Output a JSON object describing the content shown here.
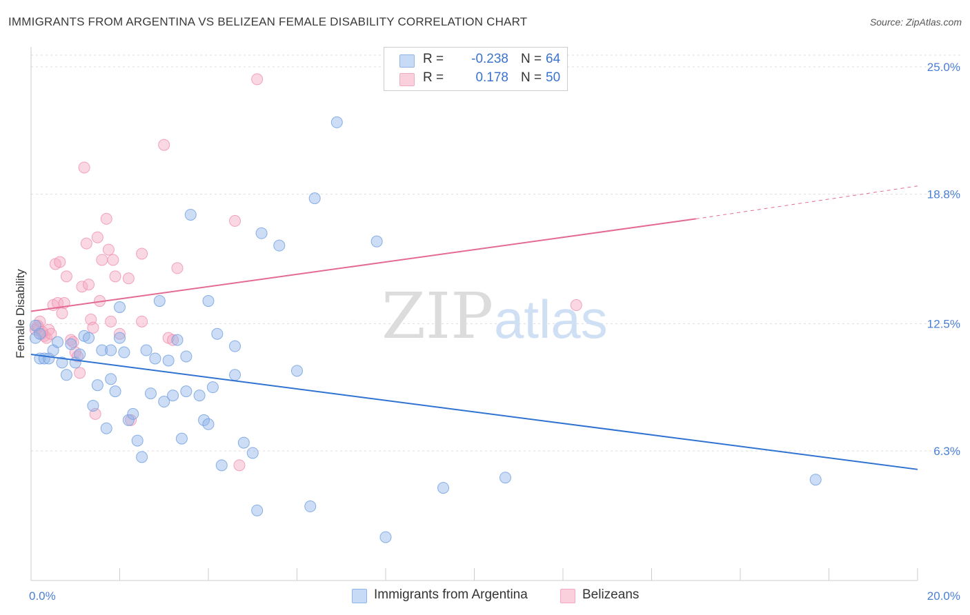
{
  "title": "IMMIGRANTS FROM ARGENTINA VS BELIZEAN FEMALE DISABILITY CORRELATION CHART",
  "source": "Source: ZipAtlas.com",
  "watermark": {
    "zip": "ZIP",
    "atlas": "atlas"
  },
  "legend": {
    "series1": {
      "r_label": "R =",
      "r_value": "-0.238",
      "n_label": "N =",
      "n_value": "64"
    },
    "series2": {
      "r_label": "R =",
      "r_value": "0.178",
      "n_label": "N =",
      "n_value": "50"
    }
  },
  "chart_data": {
    "type": "scatter",
    "title": "IMMIGRANTS FROM ARGENTINA VS BELIZEAN FEMALE DISABILITY CORRELATION CHART",
    "xlabel": "",
    "ylabel": "Female Disability",
    "xlim": [
      0,
      20
    ],
    "ylim": [
      0,
      26
    ],
    "x_tick_labels": [
      "0.0%",
      "20.0%"
    ],
    "y_ticks": [
      6.3,
      12.5,
      18.8,
      25.0
    ],
    "y_tick_labels": [
      "6.3%",
      "12.5%",
      "18.8%",
      "25.0%"
    ],
    "series": [
      {
        "name": "Immigrants from Argentina",
        "color": "#8fb4e8",
        "line_color": "#2f72d1",
        "trend": {
          "x0": 0.0,
          "y0": 11.0,
          "x1": 20.0,
          "y1": 5.4
        },
        "points": [
          [
            0.1,
            12.4
          ],
          [
            0.1,
            11.8
          ],
          [
            0.2,
            12.0
          ],
          [
            0.2,
            10.8
          ],
          [
            0.3,
            10.8
          ],
          [
            0.4,
            10.8
          ],
          [
            0.5,
            11.2
          ],
          [
            0.6,
            11.6
          ],
          [
            0.7,
            10.6
          ],
          [
            0.8,
            10.0
          ],
          [
            0.9,
            11.5
          ],
          [
            1.0,
            10.6
          ],
          [
            1.1,
            11.0
          ],
          [
            1.2,
            11.9
          ],
          [
            1.3,
            11.8
          ],
          [
            1.4,
            8.5
          ],
          [
            1.5,
            9.5
          ],
          [
            1.6,
            11.2
          ],
          [
            1.7,
            7.4
          ],
          [
            1.8,
            9.8
          ],
          [
            1.8,
            11.2
          ],
          [
            1.9,
            9.2
          ],
          [
            2.0,
            11.8
          ],
          [
            2.0,
            13.3
          ],
          [
            2.1,
            11.1
          ],
          [
            2.2,
            7.8
          ],
          [
            2.3,
            8.1
          ],
          [
            2.4,
            6.8
          ],
          [
            2.5,
            6.0
          ],
          [
            2.6,
            11.2
          ],
          [
            2.7,
            9.1
          ],
          [
            2.8,
            10.8
          ],
          [
            2.9,
            13.6
          ],
          [
            3.0,
            8.7
          ],
          [
            3.1,
            10.7
          ],
          [
            3.2,
            9.0
          ],
          [
            3.3,
            11.7
          ],
          [
            3.4,
            6.9
          ],
          [
            3.5,
            9.2
          ],
          [
            3.5,
            10.9
          ],
          [
            3.6,
            17.8
          ],
          [
            3.8,
            9.0
          ],
          [
            3.9,
            7.8
          ],
          [
            4.0,
            7.6
          ],
          [
            4.0,
            13.6
          ],
          [
            4.1,
            9.4
          ],
          [
            4.2,
            12.0
          ],
          [
            4.3,
            5.6
          ],
          [
            4.6,
            10.0
          ],
          [
            4.6,
            11.4
          ],
          [
            4.8,
            6.7
          ],
          [
            5.0,
            6.2
          ],
          [
            5.1,
            3.4
          ],
          [
            5.2,
            16.9
          ],
          [
            5.6,
            16.3
          ],
          [
            6.0,
            10.2
          ],
          [
            6.3,
            3.6
          ],
          [
            6.4,
            18.6
          ],
          [
            6.9,
            22.3
          ],
          [
            7.8,
            16.5
          ],
          [
            8.0,
            2.1
          ],
          [
            9.3,
            4.5
          ],
          [
            10.7,
            5.0
          ],
          [
            17.7,
            4.9
          ]
        ]
      },
      {
        "name": "Belizeans",
        "color": "#f4a9c0",
        "line_color": "#e46a93",
        "trend": {
          "x0": 0.0,
          "y0": 13.1,
          "x1": 15.0,
          "y1": 17.6
        },
        "trend_dashed": {
          "x0": 15.0,
          "y0": 17.6,
          "x1": 20.0,
          "y1": 19.2
        },
        "points": [
          [
            0.1,
            12.2
          ],
          [
            0.15,
            12.3
          ],
          [
            0.2,
            12.6
          ],
          [
            0.25,
            12.0
          ],
          [
            0.3,
            11.9
          ],
          [
            0.35,
            11.8
          ],
          [
            0.4,
            12.2
          ],
          [
            0.45,
            12.0
          ],
          [
            0.5,
            13.4
          ],
          [
            0.55,
            15.4
          ],
          [
            0.6,
            13.5
          ],
          [
            0.65,
            15.5
          ],
          [
            0.7,
            13.0
          ],
          [
            0.75,
            13.5
          ],
          [
            0.8,
            14.8
          ],
          [
            0.9,
            11.7
          ],
          [
            0.95,
            11.6
          ],
          [
            1.0,
            11.1
          ],
          [
            1.05,
            10.9
          ],
          [
            1.1,
            10.1
          ],
          [
            1.15,
            14.3
          ],
          [
            1.2,
            20.1
          ],
          [
            1.25,
            16.4
          ],
          [
            1.3,
            14.4
          ],
          [
            1.35,
            12.7
          ],
          [
            1.4,
            12.3
          ],
          [
            1.45,
            8.1
          ],
          [
            1.5,
            16.7
          ],
          [
            1.55,
            13.6
          ],
          [
            1.6,
            15.6
          ],
          [
            1.7,
            17.6
          ],
          [
            1.75,
            16.1
          ],
          [
            1.8,
            12.6
          ],
          [
            1.85,
            15.6
          ],
          [
            1.9,
            14.8
          ],
          [
            2.0,
            12.0
          ],
          [
            2.2,
            14.7
          ],
          [
            2.25,
            7.8
          ],
          [
            2.5,
            12.6
          ],
          [
            2.5,
            15.9
          ],
          [
            3.0,
            21.2
          ],
          [
            3.1,
            11.8
          ],
          [
            3.2,
            11.7
          ],
          [
            3.3,
            15.2
          ],
          [
            4.6,
            17.5
          ],
          [
            4.7,
            5.6
          ],
          [
            5.1,
            24.4
          ],
          [
            12.3,
            13.4
          ],
          [
            0.15,
            12.4
          ],
          [
            0.25,
            12.1
          ]
        ]
      }
    ]
  },
  "bottom_legend": {
    "series1_label": "Immigrants from Argentina",
    "series2_label": "Belizeans"
  }
}
